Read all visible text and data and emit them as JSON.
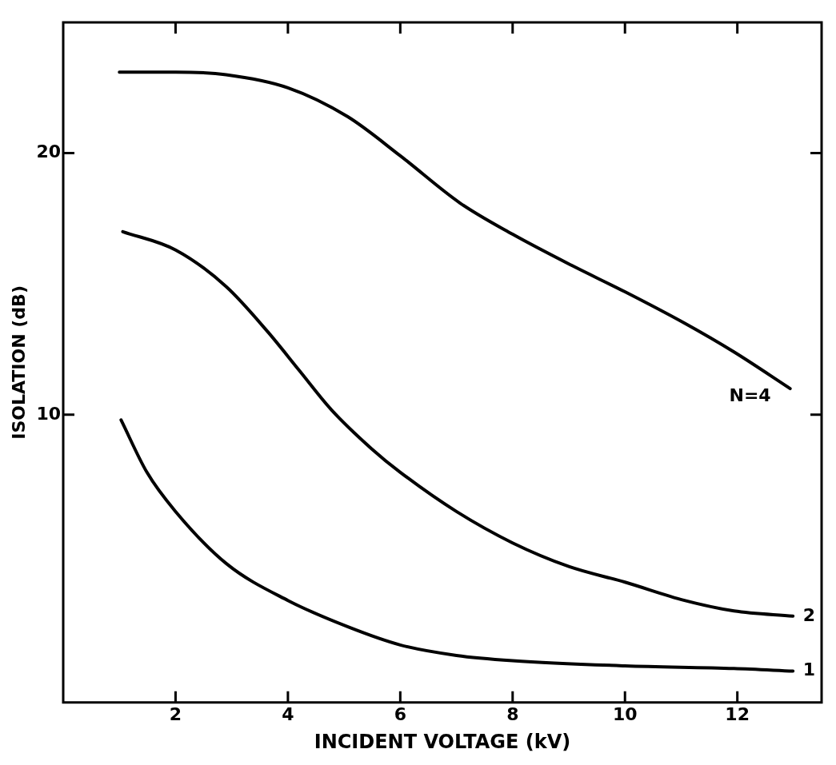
{
  "chart_data": {
    "type": "line",
    "xlabel": "INCIDENT VOLTAGE (kV)",
    "ylabel": "ISOLATION (dB)",
    "xlim": [
      0,
      13.5
    ],
    "xticks": [
      2,
      4,
      6,
      8,
      10,
      12
    ],
    "ylim": [
      -1,
      25
    ],
    "yticks": [
      10,
      20
    ],
    "grid": false,
    "legend": false,
    "marker": "none",
    "line_style": "solid",
    "series": [
      {
        "name": "N=4",
        "color": "#000000",
        "x": [
          1.0,
          2.0,
          2.9,
          4.0,
          5.06,
          6.0,
          7.06,
          8.0,
          9.06,
          10.0,
          11.06,
          11.94,
          12.94
        ],
        "values": [
          23.1,
          23.1,
          23.0,
          22.5,
          21.4,
          19.9,
          18.1,
          16.9,
          15.7,
          14.7,
          13.5,
          12.4,
          11.0
        ]
      },
      {
        "name": "2",
        "color": "#000000",
        "x": [
          1.06,
          2.0,
          2.9,
          3.63,
          4.2,
          4.77,
          5.49,
          6.0,
          7.0,
          8.0,
          9.0,
          10.0,
          11.06,
          11.94,
          12.99
        ],
        "values": [
          17.0,
          16.3,
          14.9,
          13.2,
          11.7,
          10.2,
          8.7,
          7.8,
          6.3,
          5.1,
          4.2,
          3.6,
          2.9,
          2.5,
          2.3
        ]
      },
      {
        "name": "1",
        "color": "#000000",
        "x": [
          1.03,
          1.49,
          2.0,
          2.91,
          4.0,
          5.06,
          6.0,
          7.0,
          8.0,
          10.0,
          11.94,
          12.99
        ],
        "values": [
          9.8,
          7.8,
          6.3,
          4.3,
          2.9,
          1.9,
          1.2,
          0.8,
          0.6,
          0.4,
          0.3,
          0.2
        ]
      }
    ]
  }
}
